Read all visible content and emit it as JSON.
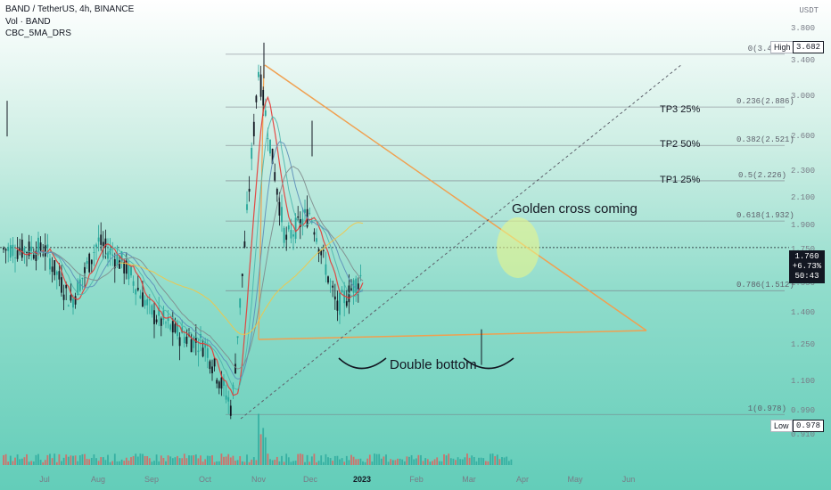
{
  "header": {
    "title": "BAND / TetherUS, 4h, BINANCE",
    "indicators": [
      "Vol · BAND",
      "CBC_5MA_DRS"
    ],
    "currency": "USDT"
  },
  "price_badge": {
    "price": "1.760",
    "change": "+6.73%",
    "countdown": "50:43"
  },
  "high_label": {
    "label": "High",
    "value": "3.682"
  },
  "low_label": {
    "label": "Low",
    "value": "0.978"
  },
  "annotations": {
    "golden_cross": "Golden cross coming",
    "double_bottom": "Double bottom",
    "tp3": "TP3 25%",
    "tp2": "TP2 50%",
    "tp1": "TP1 25%"
  },
  "fib_levels": [
    {
      "label": "0(3.475)",
      "value": 3.475
    },
    {
      "label": "0.236(2.886)",
      "value": 2.886
    },
    {
      "label": "0.382(2.521)",
      "value": 2.521
    },
    {
      "label": "0.5(2.226)",
      "value": 2.226
    },
    {
      "label": "0.618(1.932)",
      "value": 1.932
    },
    {
      "label": "0.786(1.512)",
      "value": 1.512
    },
    {
      "label": "1(0.978)",
      "value": 0.978
    }
  ],
  "colors": {
    "up": "#26a69a",
    "down": "#131722",
    "volume": "#ef5350",
    "ma_red": "#e53935",
    "ma_teal": "#4db6ac",
    "ma_blue": "#5c8db8",
    "ma_gray": "#7f8c8d",
    "ma_yellow": "#f5c542",
    "triangle": "#f0a050",
    "fib_line": "#787b86",
    "cross_circle": "#e8f58a"
  },
  "chart_data": {
    "type": "candlestick",
    "title": "BAND / TetherUS, 4h, BINANCE",
    "y_ticks": [
      3.8,
      3.4,
      3.0,
      2.6,
      2.3,
      2.1,
      1.9,
      1.75,
      1.55,
      1.4,
      1.25,
      1.1,
      0.99,
      0.91
    ],
    "y_tick_labels": [
      "3.800",
      "3.400",
      "3.000",
      "2.600",
      "2.300",
      "2.100",
      "1.900",
      "1.750",
      "1.550",
      "1.400",
      "1.250",
      "1.100",
      "0.990",
      "0.910"
    ],
    "x_ticks": [
      "Jul",
      "Aug",
      "Sep",
      "Oct",
      "Nov",
      "Dec",
      "2023",
      "Feb",
      "Mar",
      "Apr",
      "May",
      "Jun"
    ],
    "y_range": [
      0.85,
      3.95
    ],
    "scale": "log",
    "price_path": [
      {
        "t": "Jul",
        "v": 1.75
      },
      {
        "t": "mid-Jul",
        "v": 1.45
      },
      {
        "t": "Aug",
        "v": 1.8
      },
      {
        "t": "mid-Aug",
        "v": 1.65
      },
      {
        "t": "Sep",
        "v": 1.4
      },
      {
        "t": "mid-Sep",
        "v": 1.3
      },
      {
        "t": "Oct",
        "v": 1.25
      },
      {
        "t": "mid-Oct",
        "v": 1.0
      },
      {
        "t": "Nov",
        "v": 3.3
      },
      {
        "t": "mid-Nov",
        "v": 1.8
      },
      {
        "t": "Dec",
        "v": 2.0
      },
      {
        "t": "mid-Dec",
        "v": 1.42
      },
      {
        "t": "2023",
        "v": 1.6
      },
      {
        "t": "mid-Jan",
        "v": 1.95
      },
      {
        "t": "Feb",
        "v": 2.2
      },
      {
        "t": "mid-Feb",
        "v": 2.05
      },
      {
        "t": "late-Feb",
        "v": 2.1
      },
      {
        "t": "Mar",
        "v": 1.45
      },
      {
        "t": "mid-Mar",
        "v": 1.7
      },
      {
        "t": "late-Mar",
        "v": 1.76
      }
    ],
    "current_price": 1.76,
    "high": 3.682,
    "low": 0.978,
    "volume_series_name": "Vol · BAND"
  }
}
